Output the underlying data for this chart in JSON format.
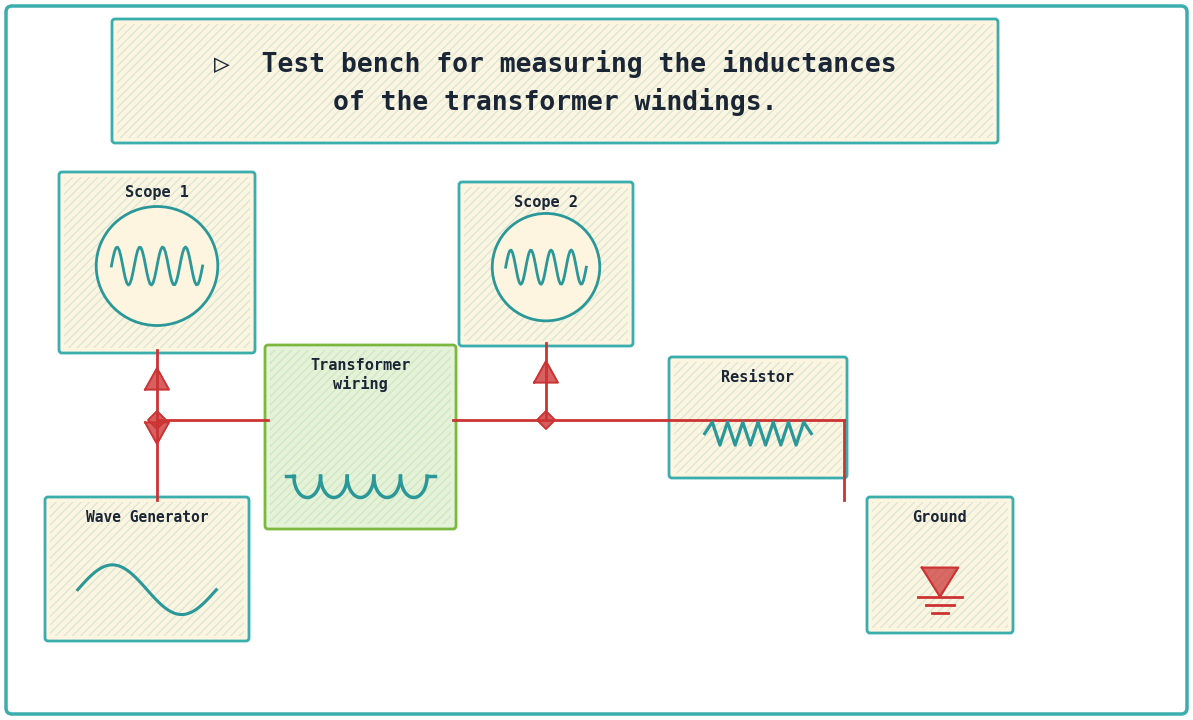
{
  "bg_color": "#ffffff",
  "outer_border": "#3aadad",
  "box_bg": "#fdf5e0",
  "box_border": "#3aadad",
  "transformer_bg": "#e5f2da",
  "transformer_border": "#7ab840",
  "wire_color": "#cc3333",
  "teal_color": "#2a9898",
  "dark_text": "#1a2535",
  "title_line1": "▷  Test bench for measuring the inductances",
  "title_line2": "of the transformer windings.",
  "scope1_label": "Scope 1",
  "scope2_label": "Scope 2",
  "transformer_label1": "Transformer",
  "transformer_label2": "wiring",
  "resistor_label": "Resistor",
  "wavegen_label": "Wave Generator",
  "ground_label": "Ground",
  "figw": 11.93,
  "figh": 7.2,
  "dpi": 100
}
